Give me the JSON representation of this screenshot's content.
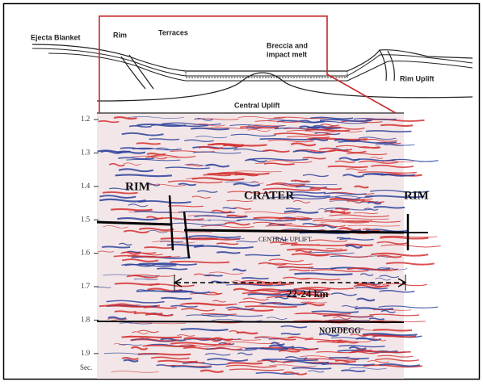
{
  "cross_section": {
    "ejecta_blanket": "Ejecta Blanket",
    "rim": "Rim",
    "terraces": "Terraces",
    "breccia": [
      "Breccia and",
      "impact melt"
    ],
    "rim_uplift": "Rim Uplift",
    "central_uplift": "Central Uplift"
  },
  "seismic": {
    "time_ticks": [
      "1.2",
      "1.3",
      "1.4",
      "1.5",
      "1.6",
      "1.7",
      "1.8",
      "1.9"
    ],
    "time_unit": "Sec.",
    "rim_left": "RIM",
    "crater": "CRATER",
    "rim_right": "RIM",
    "central_uplift": "CENTRAL UPLIFT",
    "width": "22-24 km",
    "nordegg": "NORDEGG"
  }
}
